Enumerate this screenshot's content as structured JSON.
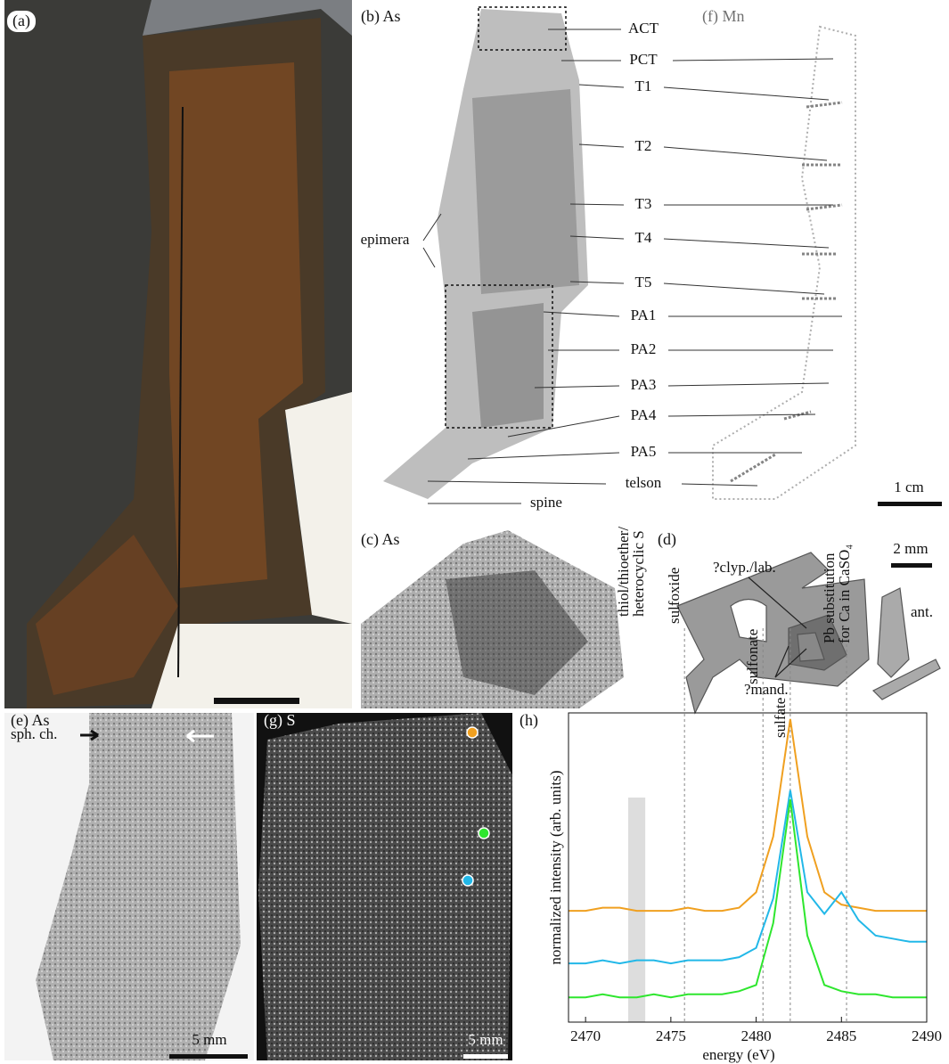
{
  "panel_a": {
    "label": "(a)"
  },
  "panel_b": {
    "label": "(b) As",
    "annotations": [
      "ACT",
      "PCT",
      "T1",
      "T2",
      "T3",
      "T4",
      "T5",
      "PA1",
      "PA2",
      "PA3",
      "PA4",
      "PA5",
      "telson",
      "spine",
      "epimera"
    ],
    "scale": "1 cm"
  },
  "panel_f": {
    "label": "(f) Mn"
  },
  "panel_c": {
    "label": "(c) As"
  },
  "panel_d": {
    "label": "(d)",
    "scale": "2 mm",
    "annotations": [
      "?clyp./lab.",
      "ant.",
      "?mand."
    ]
  },
  "panel_e": {
    "label": "(e) As",
    "annotation": "sph. ch.",
    "scale": "5 mm"
  },
  "panel_g": {
    "label": "(g) S",
    "scale": "5 mm"
  },
  "panel_h": {
    "label": "(h)"
  },
  "chart_data": {
    "type": "line",
    "x_label": "energy (eV)",
    "y_label": "normalized intensity (arb. units)",
    "x": [
      2469,
      2470,
      2471,
      2472,
      2473,
      2474,
      2475,
      2476,
      2477,
      2478,
      2479,
      2480,
      2481,
      2482,
      2483,
      2484,
      2485,
      2486,
      2487,
      2488,
      2489,
      2490
    ],
    "series": [
      {
        "color": "#f0a020",
        "values": [
          0.36,
          0.36,
          0.37,
          0.37,
          0.36,
          0.36,
          0.36,
          0.37,
          0.36,
          0.36,
          0.37,
          0.42,
          0.6,
          0.98,
          0.6,
          0.42,
          0.38,
          0.37,
          0.36,
          0.36,
          0.36,
          0.36
        ]
      },
      {
        "color": "#22b8e8",
        "values": [
          0.19,
          0.19,
          0.2,
          0.19,
          0.2,
          0.2,
          0.19,
          0.2,
          0.2,
          0.2,
          0.21,
          0.24,
          0.4,
          0.75,
          0.42,
          0.35,
          0.42,
          0.33,
          0.28,
          0.27,
          0.26,
          0.26
        ]
      },
      {
        "color": "#2ee62e",
        "values": [
          0.08,
          0.08,
          0.09,
          0.08,
          0.08,
          0.09,
          0.08,
          0.09,
          0.09,
          0.09,
          0.1,
          0.12,
          0.32,
          0.72,
          0.28,
          0.12,
          0.1,
          0.09,
          0.09,
          0.08,
          0.08,
          0.08
        ]
      }
    ],
    "xlim": [
      2469,
      2490
    ],
    "xticks": [
      2470,
      2475,
      2480,
      2485,
      2490
    ],
    "ylim": [
      0,
      1
    ],
    "band": {
      "label": [
        "thiol/thioether/",
        "heterocyclic S"
      ],
      "x": [
        2472.5,
        2473.5
      ]
    },
    "markers": [
      {
        "label": [
          "sulfoxide"
        ],
        "x": 2475.8
      },
      {
        "label": [
          "sulfonate"
        ],
        "x": 2480.4
      },
      {
        "label": [
          "sulfate"
        ],
        "x": 2482.0
      },
      {
        "label": [
          "Pb substitution",
          "for Ca in CaSO₄"
        ],
        "x": 2485.3
      }
    ]
  }
}
